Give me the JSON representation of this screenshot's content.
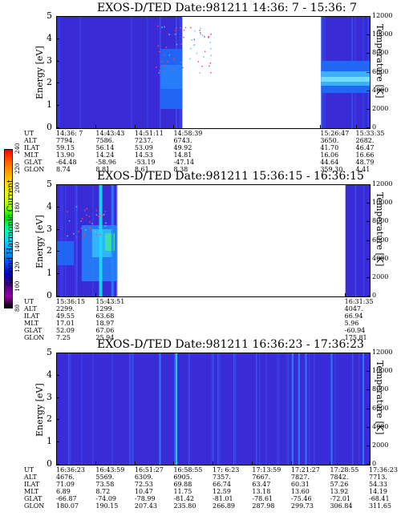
{
  "cbar": {
    "label": "Second Harmonic Current",
    "ticks": [
      "240",
      "220",
      "200",
      "180",
      "160",
      "140",
      "120",
      "100",
      "80"
    ],
    "colors": [
      "#ff0000",
      "#ff5a00",
      "#ffa000",
      "#ffdd00",
      "#e6ff00",
      "#9cff00",
      "#00e600",
      "#00ffa0",
      "#00e0ff",
      "#00a0ff",
      "#0050ff",
      "#0000d0",
      "#4b0082",
      "#9000a0",
      "#000000"
    ]
  },
  "panels": [
    {
      "title": "EXOS-D/TED   Date:981211  14:36: 7 - 15:36: 7",
      "ylabel": "Energy [eV]",
      "y2label": "Temperature [K]",
      "yticks": [
        "0",
        "1",
        "2",
        "3",
        "4",
        "5"
      ],
      "y2ticks": [
        "0",
        "2000",
        "4000",
        "6000",
        "8000",
        "10000",
        "12000"
      ],
      "metaLabels": [
        "UT",
        "ALT",
        "ILAT",
        "MLT",
        "GLAT",
        "GLON"
      ],
      "meta": [
        [
          "14:36: 7",
          "7794.",
          "59.15",
          "13.90",
          "-64.48",
          "8.74"
        ],
        [
          "14:43:43",
          "7586.",
          "56.14",
          "14.24",
          "-58.96",
          "8.81"
        ],
        [
          "14:51:11",
          "7237.",
          "53.09",
          "14.53",
          "-53.19",
          "8.61"
        ],
        [
          "14:58:39",
          "6743.",
          "49.92",
          "14.81",
          "-47.14",
          "8.38"
        ],
        [
          "15:26:47",
          "3650.",
          "41.70",
          "16.06",
          "44.64",
          "359.30"
        ],
        [
          "15:33:35",
          "2682.",
          "46.47",
          "16.66",
          "48.79",
          "4.41"
        ]
      ],
      "chart_data": {
        "type": "heatmap",
        "x_start": "14:36:07",
        "x_end": "15:36:07",
        "ylim": [
          0,
          5
        ],
        "y2lim": [
          0,
          12000
        ],
        "data_blocks": [
          {
            "from": "14:36:07",
            "to": "15:00:10",
            "note": "spectrogram"
          },
          {
            "from": "15:26:47",
            "to": "15:36:07",
            "note": "spectrogram"
          }
        ]
      }
    },
    {
      "title": "EXOS-D/TED   Date:981211  15:36:15 - 16:36:15",
      "ylabel": "Energy [eV]",
      "y2label": "Temperature [K]",
      "yticks": [
        "0",
        "1",
        "2",
        "3",
        "4",
        "5"
      ],
      "y2ticks": [
        "0",
        "2000",
        "4000",
        "6000",
        "8000",
        "10000",
        "12000"
      ],
      "metaLabels": [
        "UT",
        "ALT",
        "ILAT",
        "MLT",
        "GLAT",
        "GLON"
      ],
      "meta": [
        [
          "15:36:15",
          "2299.",
          "49.55",
          "17.01",
          "52.09",
          "7.25"
        ],
        [
          "15:43:51",
          "1299.",
          "63.68",
          "18.97",
          "67.06",
          "25.94"
        ],
        [
          "16:31:35",
          "4047.",
          "66.94",
          "5.96",
          "-60.94",
          "175.81"
        ]
      ],
      "chart_data": {
        "type": "heatmap",
        "x_start": "15:36:15",
        "x_end": "16:36:15",
        "ylim": [
          0,
          5
        ],
        "y2lim": [
          0,
          12000
        ],
        "data_blocks": [
          {
            "from": "15:36:15",
            "to": "15:47:40",
            "note": "spectrogram"
          },
          {
            "from": "16:31:35",
            "to": "16:36:15",
            "note": "spectrogram"
          }
        ]
      }
    },
    {
      "title": "EXOS-D/TED   Date:981211  16:36:23 - 17:36:23",
      "ylabel": "Energy [eV]",
      "y2label": "Temperature [K]",
      "yticks": [
        "0",
        "1",
        "2",
        "3",
        "4",
        "5"
      ],
      "y2ticks": [
        "0",
        "2000",
        "4000",
        "6000",
        "8000",
        "10000",
        "12000"
      ],
      "metaLabels": [
        "UT",
        "ALT",
        "ILAT",
        "MLT",
        "GLAT",
        "GLON"
      ],
      "meta": [
        [
          "16:36:23",
          "4676.",
          "71.09",
          "6.89",
          "-66.87",
          "180.07"
        ],
        [
          "16:43:59",
          "5569.",
          "73.58",
          "8.72",
          "-74.09",
          "190.15"
        ],
        [
          "16:51:27",
          "6309.",
          "72.53",
          "10.47",
          "-78.99",
          "207.43"
        ],
        [
          "16:58:55",
          "6905.",
          "69.88",
          "11.75",
          "-81.42",
          "235.80"
        ],
        [
          "17: 6:23",
          "7357.",
          "66.74",
          "12.59",
          "-81.01",
          "266.89"
        ],
        [
          "17:13:59",
          "7667.",
          "63.47",
          "13.18",
          "-78.61",
          "287.98"
        ],
        [
          "17:21:27",
          "7827.",
          "60.31",
          "13.60",
          "-75.46",
          "299.73"
        ],
        [
          "17:28:55",
          "7842.",
          "57.26",
          "13.92",
          "-72.01",
          "306.84"
        ],
        [
          "17:36:23",
          "7713.",
          "54.33",
          "14.19",
          "-68.41",
          "311.65"
        ]
      ],
      "chart_data": {
        "type": "heatmap",
        "x_start": "16:36:23",
        "x_end": "17:36:23",
        "ylim": [
          0,
          5
        ],
        "y2lim": [
          0,
          12000
        ],
        "data_blocks": [
          {
            "from": "16:36:23",
            "to": "17:36:23",
            "note": "spectrogram"
          }
        ]
      }
    }
  ]
}
